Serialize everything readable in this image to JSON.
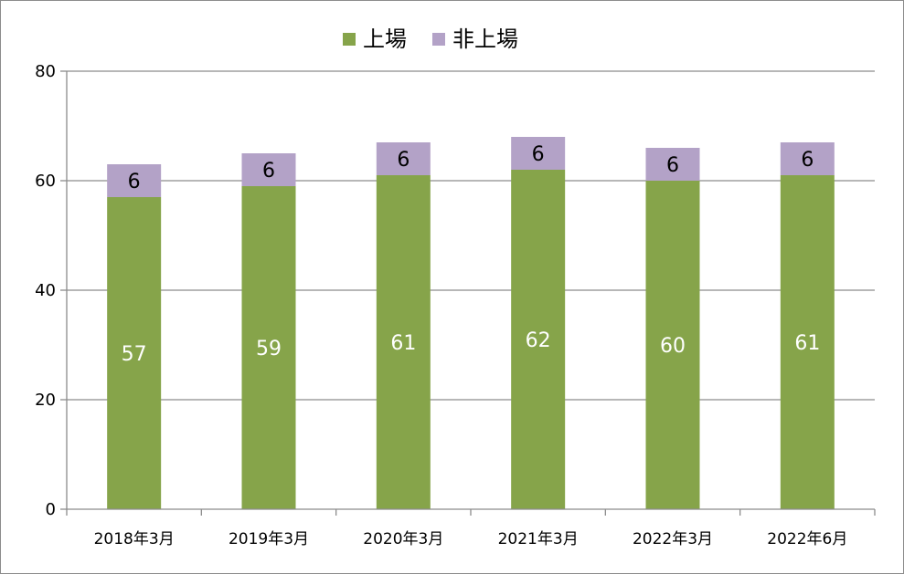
{
  "chart_data": {
    "type": "bar",
    "stacked": true,
    "categories": [
      "2018年3月",
      "2019年3月",
      "2020年3月",
      "2021年3月",
      "2022年3月",
      "2022年6月"
    ],
    "series": [
      {
        "name": "上場",
        "values": [
          57,
          59,
          61,
          62,
          60,
          61
        ],
        "color": "#86a44a"
      },
      {
        "name": "非上場",
        "values": [
          6,
          6,
          6,
          6,
          6,
          6
        ],
        "color": "#b3a2c7"
      }
    ],
    "title": "",
    "xlabel": "",
    "ylabel": "",
    "ylim": [
      0,
      80
    ],
    "yticks": [
      0,
      20,
      40,
      60,
      80
    ],
    "grid": true,
    "legend_position": "top-center"
  }
}
